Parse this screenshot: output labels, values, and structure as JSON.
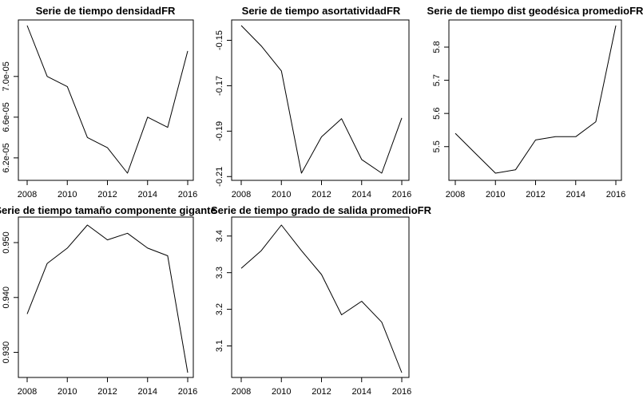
{
  "chart_data": [
    {
      "type": "line",
      "title": "Serie de tiempo densidadFR",
      "x": [
        2008,
        2009,
        2010,
        2011,
        2012,
        2013,
        2014,
        2015,
        2016
      ],
      "values": [
        7.5e-05,
        7e-05,
        6.9e-05,
        6.4e-05,
        6.3e-05,
        6.05e-05,
        6.6e-05,
        6.5e-05,
        7.25e-05
      ],
      "xlim": [
        2008,
        2016
      ],
      "ylim": [
        6.05e-05,
        7.5e-05
      ],
      "xticks": [
        2008,
        2010,
        2012,
        2014,
        2016
      ],
      "yticks": [
        6.2e-05,
        6.6e-05,
        7e-05
      ],
      "yticklabels": [
        "6.2e-05",
        "6.6e-05",
        "7.0e-05"
      ]
    },
    {
      "type": "line",
      "title": "Serie de tiempo asortatividadFR",
      "x": [
        2008,
        2009,
        2010,
        2011,
        2012,
        2013,
        2014,
        2015,
        2016
      ],
      "values": [
        -0.1435,
        -0.1525,
        -0.1635,
        -0.2085,
        -0.1925,
        -0.1845,
        -0.2025,
        -0.2085,
        -0.1842
      ],
      "xlim": [
        2008,
        2016
      ],
      "ylim": [
        -0.2085,
        -0.1435
      ],
      "xticks": [
        2008,
        2010,
        2012,
        2014,
        2016
      ],
      "yticks": [
        -0.21,
        -0.19,
        -0.17,
        -0.15
      ],
      "yticklabels": [
        "-0.21",
        "-0.19",
        "-0.17",
        "-0.15"
      ]
    },
    {
      "type": "line",
      "title": "Serie de tiempo dist geodésica promedioFR",
      "x": [
        2008,
        2009,
        2010,
        2011,
        2012,
        2013,
        2014,
        2015,
        2016
      ],
      "values": [
        5.54,
        5.48,
        5.42,
        5.43,
        5.52,
        5.53,
        5.53,
        5.575,
        5.865
      ],
      "xlim": [
        2008,
        2016
      ],
      "ylim": [
        5.42,
        5.865
      ],
      "xticks": [
        2008,
        2010,
        2012,
        2014,
        2016
      ],
      "yticks": [
        5.5,
        5.6,
        5.7,
        5.8
      ],
      "yticklabels": [
        "5.5",
        "5.6",
        "5.7",
        "5.8"
      ]
    },
    {
      "type": "line",
      "title": "Serie de tiempo tamaño componente gigante",
      "x": [
        2008,
        2009,
        2010,
        2011,
        2012,
        2013,
        2014,
        2015,
        2016
      ],
      "values": [
        0.937,
        0.9462,
        0.949,
        0.9532,
        0.9505,
        0.9517,
        0.949,
        0.9476,
        0.9263
      ],
      "xlim": [
        2008,
        2016
      ],
      "ylim": [
        0.9263,
        0.9532
      ],
      "xticks": [
        2008,
        2010,
        2012,
        2014,
        2016
      ],
      "yticks": [
        0.93,
        0.94,
        0.95
      ],
      "yticklabels": [
        "0.930",
        "0.940",
        "0.950"
      ]
    },
    {
      "type": "line",
      "title": "Serie de tiempo grado de salida promedioFR",
      "x": [
        2008,
        2009,
        2010,
        2011,
        2012,
        2013,
        2014,
        2015,
        2016
      ],
      "values": [
        3.312,
        3.36,
        3.43,
        3.36,
        3.295,
        3.185,
        3.222,
        3.165,
        3.027
      ],
      "xlim": [
        2008,
        2016
      ],
      "ylim": [
        3.027,
        3.43
      ],
      "xticks": [
        2008,
        2010,
        2012,
        2014,
        2016
      ],
      "yticks": [
        3.1,
        3.2,
        3.3,
        3.4
      ],
      "yticklabels": [
        "3.1",
        "3.2",
        "3.3",
        "3.4"
      ]
    }
  ]
}
